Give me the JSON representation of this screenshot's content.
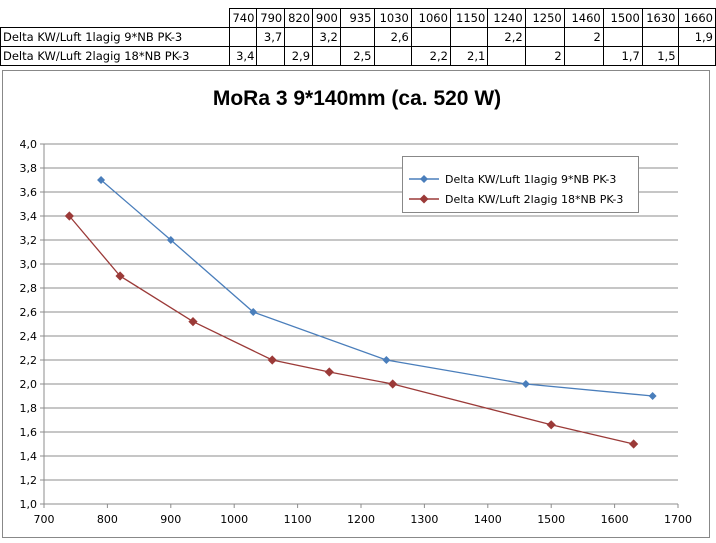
{
  "table": {
    "header": [
      "740",
      "790",
      "820",
      "900",
      "935",
      "1030",
      "1060",
      "1150",
      "1240",
      "1250",
      "1460",
      "1500",
      "1630",
      "1660"
    ],
    "rows": [
      {
        "label": "Delta KW/Luft 1lagig 9*NB PK-3",
        "cells": [
          "",
          "3,7",
          "",
          "3,2",
          "",
          "2,6",
          "",
          "",
          "2,2",
          "",
          "2",
          "",
          "",
          "1,9"
        ]
      },
      {
        "label": "Delta KW/Luft 2lagig 18*NB PK-3",
        "cells": [
          "3,4",
          "",
          "2,9",
          "",
          "2,5",
          "",
          "2,2",
          "2,1",
          "",
          "2",
          "",
          "1,7",
          "1,5",
          ""
        ]
      }
    ]
  },
  "chart_data": {
    "type": "line",
    "title": "MoRa 3 9*140mm (ca. 520 W)",
    "xlabel": "",
    "ylabel": "",
    "xlim": [
      700,
      1700
    ],
    "ylim": [
      1.0,
      4.0
    ],
    "x_ticks": [
      "700",
      "800",
      "900",
      "1000",
      "1100",
      "1200",
      "1300",
      "1400",
      "1500",
      "1600",
      "1700"
    ],
    "y_ticks": [
      "1,0",
      "1,2",
      "1,4",
      "1,6",
      "1,8",
      "2,0",
      "2,2",
      "2,4",
      "2,6",
      "2,8",
      "3,0",
      "3,2",
      "3,4",
      "3,6",
      "3,8",
      "4,0"
    ],
    "grid": true,
    "legend_position": "top-right",
    "series": [
      {
        "name": "Delta KW/Luft 1lagig 9*NB PK-3",
        "color": "#4a7ebb",
        "marker": "diamond",
        "x": [
          790,
          900,
          1030,
          1240,
          1460,
          1660
        ],
        "y": [
          3.7,
          3.2,
          2.6,
          2.2,
          2.0,
          1.9
        ]
      },
      {
        "name": "Delta KW/Luft 2lagig 18*NB PK-3",
        "color": "#9b3a38",
        "marker": "diamond",
        "x": [
          740,
          820,
          935,
          1060,
          1150,
          1250,
          1500,
          1630
        ],
        "y": [
          3.4,
          2.9,
          2.52,
          2.2,
          2.1,
          2.0,
          1.66,
          1.5
        ]
      }
    ]
  }
}
